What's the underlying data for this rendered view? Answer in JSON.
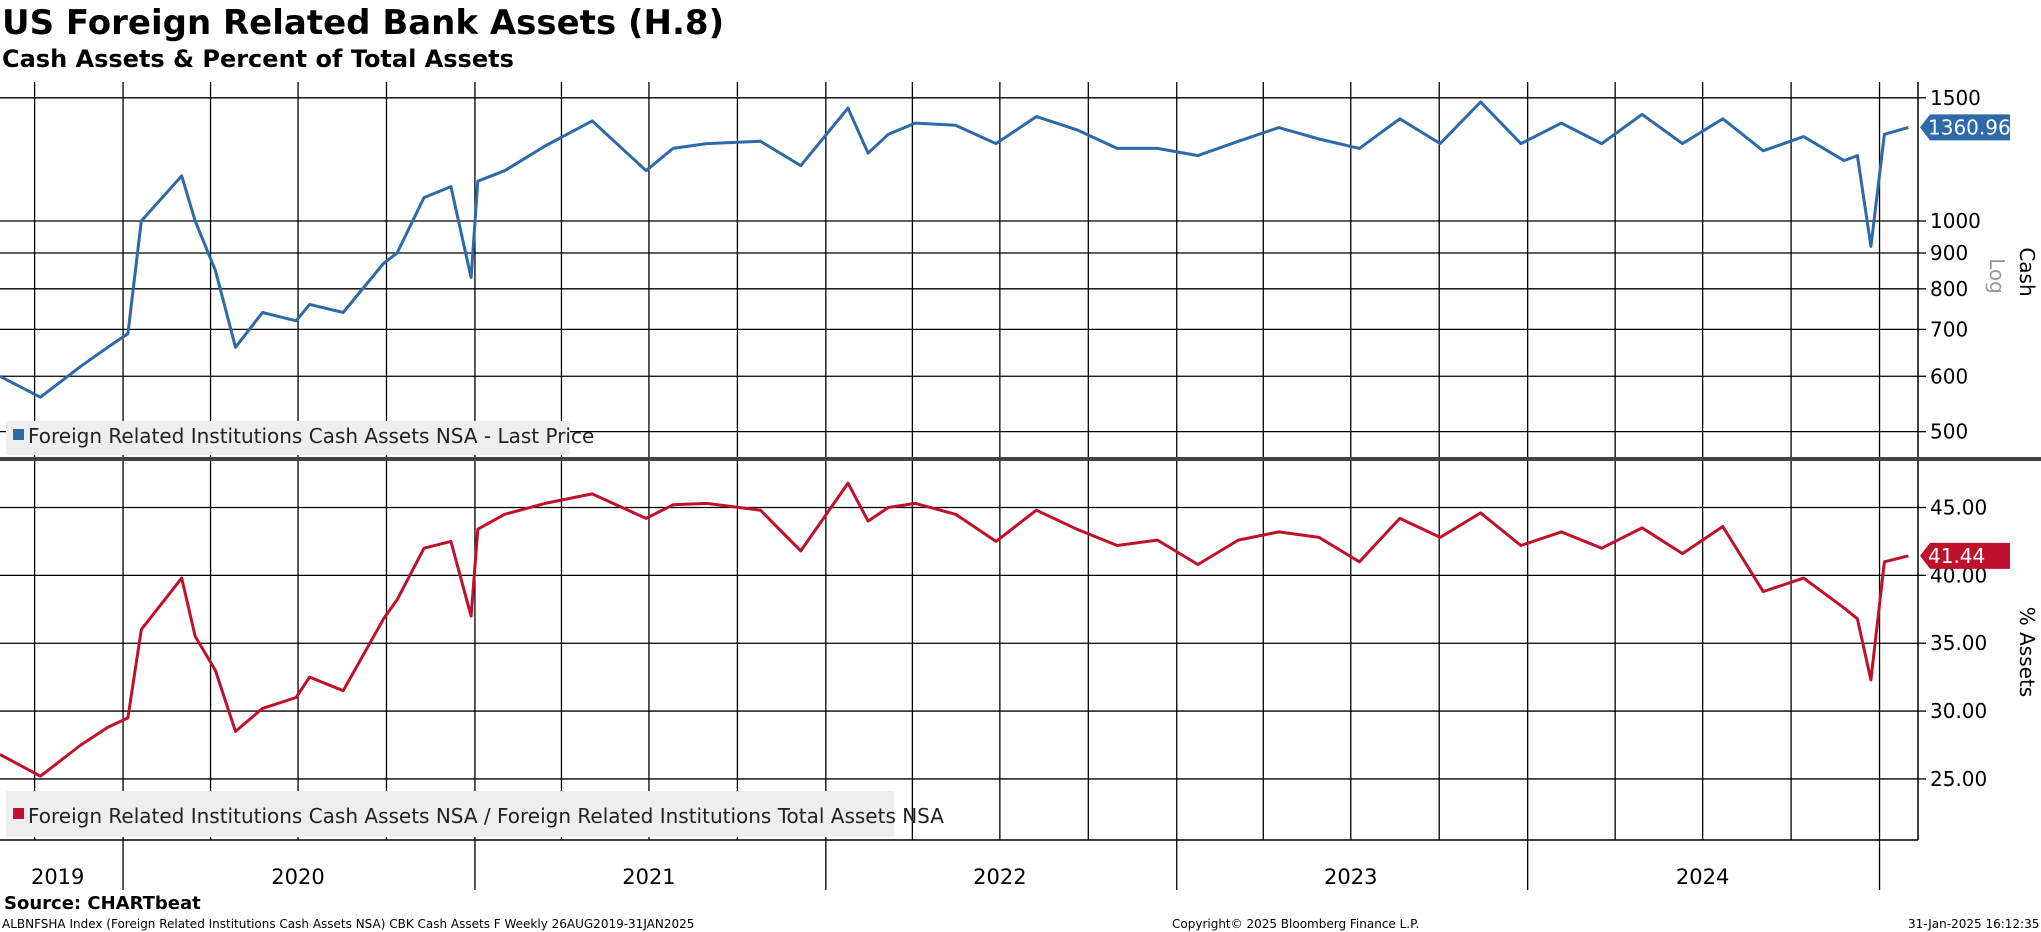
{
  "title": "US Foreign Related Bank Assets (H.8)",
  "subtitle": "Cash Assets & Percent of Total Assets",
  "footer": {
    "source": "Source: CHARTbeat",
    "index_info": "ALBNFSHA Index (Foreign Related Institutions Cash Assets NSA) CBK Cash Assets F  Weekly 26AUG2019-31JAN2025",
    "copyright": "Copyright© 2025 Bloomberg Finance L.P.",
    "timestamp": "31-Jan-2025 16:12:35"
  },
  "colors": {
    "cash": "#2e6aa7",
    "pct": "#c0112c",
    "grid": "#000000"
  },
  "chart_data": [
    {
      "type": "line",
      "panel": "top",
      "ylabel": "Cash",
      "scale_label": "Log",
      "log_scale": true,
      "ylim": [
        460,
        1580
      ],
      "yticks": [
        500,
        600,
        700,
        800,
        900,
        1000,
        1500
      ],
      "ytick_labels": [
        "500",
        "600",
        "700",
        "800",
        "900",
        "1000",
        "1500"
      ],
      "last_value_label": "1360.96",
      "series": [
        {
          "name": "Foreign Related Institutions Cash Assets NSA - Last Price",
          "x": [
            "2019-08-26",
            "2019-10-07",
            "2019-11-18",
            "2019-12-16",
            "2020-01-06",
            "2020-01-20",
            "2020-03-02",
            "2020-03-16",
            "2020-04-06",
            "2020-04-27",
            "2020-05-25",
            "2020-06-29",
            "2020-07-13",
            "2020-08-17",
            "2020-09-28",
            "2020-10-12",
            "2020-11-09",
            "2020-12-07",
            "2020-12-28",
            "2021-01-04",
            "2021-02-01",
            "2021-03-15",
            "2021-05-03",
            "2021-06-28",
            "2021-07-26",
            "2021-08-30",
            "2021-10-25",
            "2021-12-06",
            "2022-01-24",
            "2022-02-14",
            "2022-03-07",
            "2022-04-04",
            "2022-05-16",
            "2022-06-27",
            "2022-08-08",
            "2022-09-19",
            "2022-10-31",
            "2022-12-12",
            "2023-01-23",
            "2023-03-06",
            "2023-04-17",
            "2023-05-29",
            "2023-07-10",
            "2023-08-21",
            "2023-10-02",
            "2023-11-13",
            "2023-12-25",
            "2024-02-05",
            "2024-03-18",
            "2024-04-29",
            "2024-06-10",
            "2024-07-22",
            "2024-09-02",
            "2024-10-14",
            "2024-11-25",
            "2024-12-09",
            "2024-12-23",
            "2025-01-06",
            "2025-01-31"
          ],
          "values": [
            600,
            560,
            620,
            660,
            690,
            1000,
            1160,
            1000,
            850,
            660,
            740,
            720,
            760,
            740,
            870,
            900,
            1080,
            1120,
            830,
            1140,
            1180,
            1280,
            1390,
            1180,
            1270,
            1290,
            1300,
            1200,
            1450,
            1250,
            1330,
            1380,
            1370,
            1290,
            1410,
            1350,
            1270,
            1270,
            1240,
            1300,
            1360,
            1310,
            1270,
            1400,
            1290,
            1480,
            1290,
            1380,
            1290,
            1420,
            1290,
            1400,
            1260,
            1320,
            1220,
            1240,
            920,
            1330,
            1360.96
          ]
        }
      ]
    },
    {
      "type": "line",
      "panel": "bottom",
      "ylabel": "% Assets",
      "ylim": [
        20.5,
        48.5
      ],
      "yticks": [
        25,
        30,
        35,
        40,
        45
      ],
      "ytick_labels": [
        "25.00",
        "30.00",
        "35.00",
        "40.00",
        "45.00"
      ],
      "last_value_label": "41.44",
      "series": [
        {
          "name": "Foreign Related Institutions Cash Assets NSA / Foreign Related Institutions Total Assets NSA",
          "x": [
            "2019-08-26",
            "2019-10-07",
            "2019-11-18",
            "2019-12-16",
            "2020-01-06",
            "2020-01-20",
            "2020-03-02",
            "2020-03-16",
            "2020-04-06",
            "2020-04-27",
            "2020-05-25",
            "2020-06-29",
            "2020-07-13",
            "2020-08-17",
            "2020-09-28",
            "2020-10-12",
            "2020-11-09",
            "2020-12-07",
            "2020-12-28",
            "2021-01-04",
            "2021-02-01",
            "2021-03-15",
            "2021-05-03",
            "2021-06-28",
            "2021-07-26",
            "2021-08-30",
            "2021-10-25",
            "2021-12-06",
            "2022-01-24",
            "2022-02-14",
            "2022-03-07",
            "2022-04-04",
            "2022-05-16",
            "2022-06-27",
            "2022-08-08",
            "2022-09-19",
            "2022-10-31",
            "2022-12-12",
            "2023-01-23",
            "2023-03-06",
            "2023-04-17",
            "2023-05-29",
            "2023-07-10",
            "2023-08-21",
            "2023-10-02",
            "2023-11-13",
            "2023-12-25",
            "2024-02-05",
            "2024-03-18",
            "2024-04-29",
            "2024-06-10",
            "2024-07-22",
            "2024-09-02",
            "2024-10-14",
            "2024-11-25",
            "2024-12-09",
            "2024-12-23",
            "2025-01-06",
            "2025-01-31"
          ],
          "values": [
            26.8,
            25.2,
            27.5,
            28.8,
            29.5,
            36,
            39.8,
            35.5,
            33,
            28.5,
            30.2,
            31,
            32.5,
            31.5,
            36.8,
            38.2,
            42,
            42.5,
            37,
            43.4,
            44.5,
            45.3,
            46,
            44.2,
            45.2,
            45.3,
            44.8,
            41.8,
            46.8,
            44,
            45,
            45.3,
            44.5,
            42.5,
            44.8,
            43.4,
            42.2,
            42.6,
            40.8,
            42.6,
            43.2,
            42.8,
            41,
            44.2,
            42.8,
            44.6,
            42.2,
            43.2,
            42,
            43.5,
            41.6,
            43.6,
            38.8,
            39.8,
            37.6,
            36.8,
            32.3,
            41,
            41.44
          ]
        }
      ]
    }
  ],
  "x_axis": {
    "year_labels": [
      {
        "label": "2019",
        "mid": "2019-10-25"
      },
      {
        "label": "2020",
        "mid": "2020-07-01"
      },
      {
        "label": "2021",
        "mid": "2021-07-01"
      },
      {
        "label": "2022",
        "mid": "2022-07-01"
      },
      {
        "label": "2023",
        "mid": "2023-07-01"
      },
      {
        "label": "2024",
        "mid": "2024-07-01"
      }
    ],
    "year_boundaries": [
      "2020-01-01",
      "2021-01-01",
      "2022-01-01",
      "2023-01-01",
      "2024-01-01",
      "2025-01-01"
    ],
    "quarter_boundaries": [
      "2019-10-01",
      "2020-04-01",
      "2020-07-01",
      "2020-10-01",
      "2021-04-01",
      "2021-07-01",
      "2021-10-01",
      "2022-04-01",
      "2022-07-01",
      "2022-10-01",
      "2023-04-01",
      "2023-07-01",
      "2023-10-01",
      "2024-04-01",
      "2024-07-01",
      "2024-10-01"
    ]
  }
}
